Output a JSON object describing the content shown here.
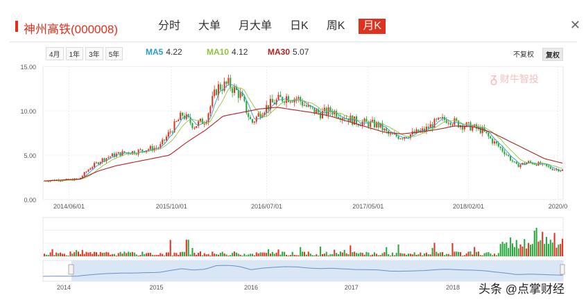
{
  "header": {
    "title": "神州高铁(000008)",
    "tabs": [
      {
        "label": "分时",
        "active": false
      },
      {
        "label": "大单",
        "active": false
      },
      {
        "label": "月大单",
        "active": false
      },
      {
        "label": "日K",
        "active": false
      },
      {
        "label": "周K",
        "active": false
      },
      {
        "label": "月K",
        "active": true
      }
    ],
    "close_icon": "close-icon"
  },
  "toolbar": {
    "ranges": [
      "4月",
      "1年",
      "3年",
      "5年"
    ],
    "ma": [
      {
        "label": "MA5",
        "value": "4.22",
        "color": "#2a9bd0"
      },
      {
        "label": "MA10",
        "value": "4.12",
        "color": "#8ec43c"
      },
      {
        "label": "MA30",
        "value": "5.07",
        "color": "#b22222"
      }
    ],
    "adjust": [
      {
        "label": "不复权",
        "active": false
      },
      {
        "label": "复权",
        "active": true
      }
    ]
  },
  "watermark": "财牛智投",
  "credit": "头条 @点掌财经",
  "colors": {
    "accent": "#e0301e",
    "up": "#e0301e",
    "down": "#26a73a"
  },
  "chart_data": {
    "type": "line",
    "ylim": [
      0,
      15
    ],
    "y_ticks": [
      "15.00",
      "10.00",
      "5.00",
      "0.00"
    ],
    "x_tick_labels": [
      "2014/06/01",
      "2015/10/01",
      "2016/07/01",
      "2017/05/01",
      "2018/02/01",
      "2020/0"
    ],
    "navigator_labels": [
      "2014",
      "2015",
      "2016",
      "2017",
      "2018"
    ],
    "price_path": [
      2.1,
      2.2,
      2.2,
      2.3,
      3.6,
      4.5,
      5.0,
      5.3,
      5.4,
      5.7,
      5.9,
      7.8,
      9.6,
      8.3,
      9.0,
      12.6,
      13.0,
      11.8,
      8.6,
      10.2,
      11.0,
      11.6,
      11.4,
      10.2,
      9.7,
      10.0,
      9.4,
      8.8,
      8.6,
      8.4,
      7.2,
      7.1,
      7.4,
      7.8,
      8.7,
      9.1,
      8.5,
      8.2,
      7.8,
      6.5,
      5.3,
      3.8,
      4.2,
      4.0,
      3.5,
      3.3
    ],
    "ma30_path": [
      2.1,
      2.2,
      2.3,
      3.2,
      3.8,
      4.2,
      4.6,
      5.0,
      6.5,
      7.8,
      9.4,
      9.8,
      10.2,
      10.4,
      10.1,
      9.8,
      9.4,
      8.8,
      8.2,
      7.6,
      7.4,
      7.6,
      7.9,
      8.3,
      8.2,
      7.6,
      6.6,
      5.6,
      4.6,
      4.1
    ]
  }
}
